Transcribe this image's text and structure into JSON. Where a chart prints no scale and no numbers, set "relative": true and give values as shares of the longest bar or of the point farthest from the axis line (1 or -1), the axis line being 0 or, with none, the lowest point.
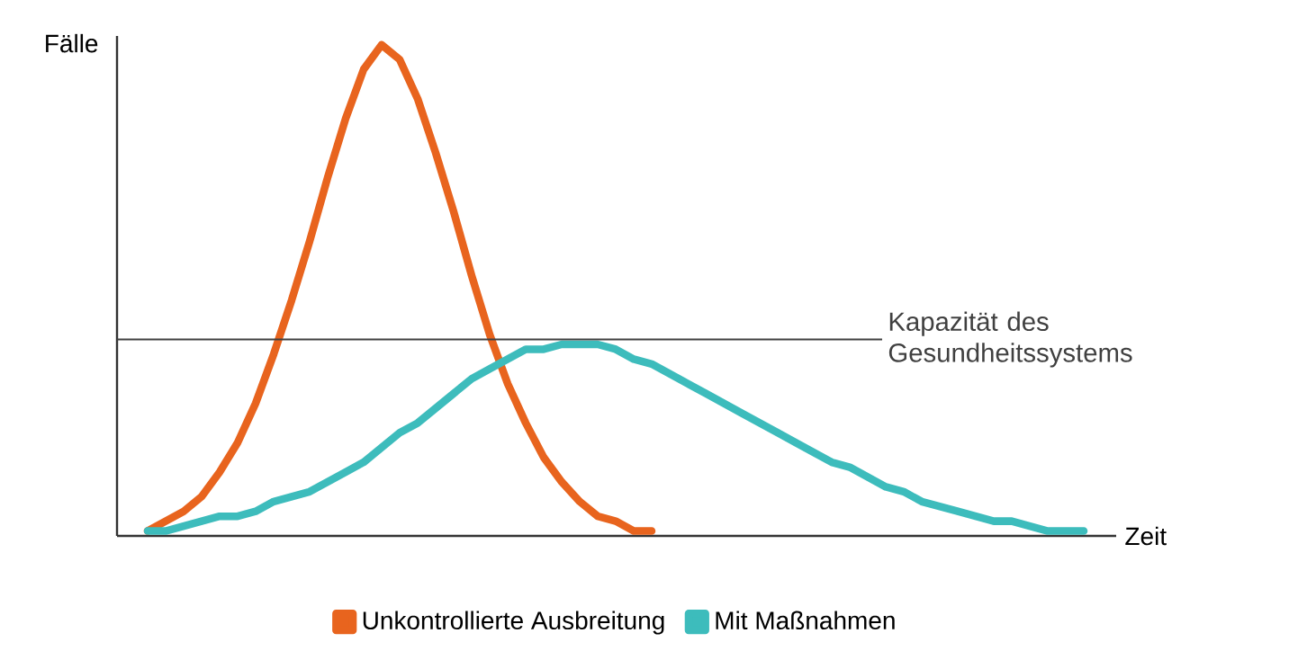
{
  "chart_data": {
    "type": "line",
    "relative": true,
    "legend": "bottom",
    "xlabel": "Zeit",
    "ylabel": "Fälle",
    "categories": [
      null,
      null,
      null,
      null,
      null,
      null,
      null,
      null,
      null,
      null,
      null,
      null,
      null,
      null,
      null,
      null,
      null,
      null,
      null,
      null,
      null,
      null,
      null,
      null,
      null,
      null,
      null,
      null,
      null,
      null,
      null,
      null,
      null,
      null,
      null,
      null,
      null,
      null,
      null,
      null,
      null,
      null,
      null,
      null,
      null,
      null,
      null,
      null,
      null,
      null,
      null,
      null,
      null
    ],
    "series": [
      {
        "name": "Unkontrollierte Ausbreitung",
        "color": "#e8641e",
        "values": [
          0.01,
          0.03,
          0.05,
          0.08,
          0.13,
          0.19,
          0.27,
          0.37,
          0.48,
          0.6,
          0.73,
          0.85,
          0.95,
          1,
          0.97,
          0.89,
          0.78,
          0.66,
          0.53,
          0.41,
          0.31,
          0.23,
          0.16,
          0.11,
          0.07,
          0.04,
          0.03,
          0.01,
          0.01,
          null,
          null,
          null,
          null,
          null,
          null,
          null,
          null,
          null,
          null,
          null,
          null,
          null,
          null,
          null,
          null,
          null,
          null,
          null,
          null,
          null,
          null,
          null,
          null
        ]
      },
      {
        "name": "Mit Maßnahmen",
        "color": "#3dbcbc",
        "values": [
          0.01,
          0.01,
          0.02,
          0.03,
          0.04,
          0.04,
          0.05,
          0.07,
          0.08,
          0.09,
          0.11,
          0.13,
          0.15,
          0.18,
          0.21,
          0.23,
          0.26,
          0.29,
          0.32,
          0.34,
          0.36,
          0.38,
          0.38,
          0.39,
          0.39,
          0.39,
          0.38,
          0.36,
          0.35,
          0.33,
          0.31,
          0.29,
          0.27,
          0.25,
          0.23,
          0.21,
          0.19,
          0.17,
          0.15,
          0.14,
          0.12,
          0.1,
          0.09,
          0.07,
          0.06,
          0.05,
          0.04,
          0.03,
          0.03,
          0.02,
          0.01,
          0.01,
          0.01
        ]
      }
    ],
    "ref_lines": [
      {
        "axis": "y",
        "value": 0.4,
        "label": "Kapazität des Gesundheitssystems"
      }
    ]
  }
}
